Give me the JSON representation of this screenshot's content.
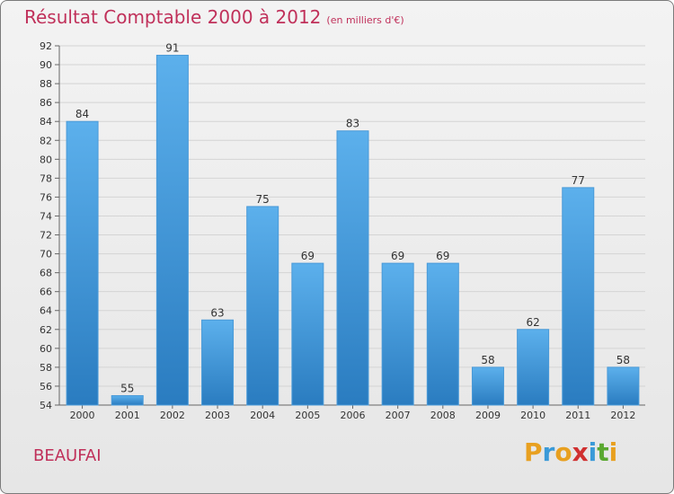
{
  "header": {
    "title": "Résultat Comptable 2000 à 2012",
    "subtitle": "(en milliers d'€)"
  },
  "footer": {
    "commune": "BEAUFAI",
    "brand": "Proxiti",
    "brand_letters": [
      "P",
      "r",
      "o",
      "x",
      "i",
      "t",
      "i"
    ]
  },
  "colors": {
    "title": "#c0305a",
    "bar_top": "#5cb0ec",
    "bar_bottom": "#2a7cc0",
    "grid": "#d4d4d4"
  },
  "chart_data": {
    "type": "bar",
    "title": "Résultat Comptable 2000 à 2012",
    "ylabel": "en milliers d'€",
    "xlabel": "",
    "categories": [
      "2000",
      "2001",
      "2002",
      "2003",
      "2004",
      "2005",
      "2006",
      "2007",
      "2008",
      "2009",
      "2010",
      "2011",
      "2012"
    ],
    "values": [
      84,
      55,
      91,
      63,
      75,
      69,
      83,
      69,
      69,
      58,
      62,
      77,
      58
    ],
    "ylim": [
      54,
      92
    ],
    "yticks": [
      54,
      56,
      58,
      60,
      62,
      64,
      66,
      68,
      70,
      72,
      74,
      76,
      78,
      80,
      82,
      84,
      86,
      88,
      90,
      92
    ],
    "grid": true
  }
}
